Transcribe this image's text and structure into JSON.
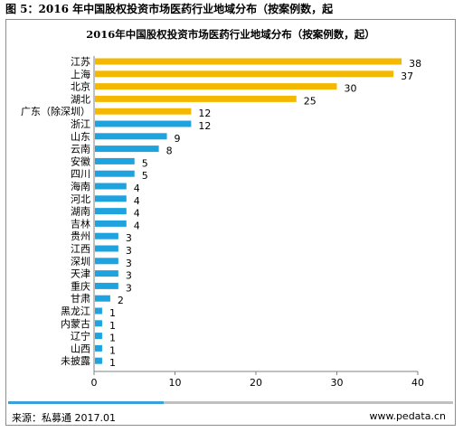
{
  "figure_caption": "图 5：2016 年中国股权投资市场医药行业地域分布（按案例数，起",
  "footer": {
    "source": "来源：私募通 2017.01",
    "website": "www.pedata.cn"
  },
  "colors": {
    "highlight": "#f5b800",
    "normal": "#1fa3df",
    "progress": "#3aa0dc",
    "progress_track": "#c0c0c0"
  },
  "progress_fraction": 0.35,
  "chart_data": {
    "type": "bar",
    "orientation": "horizontal",
    "title": "2016年中国股权投资市场医药行业地域分布（按案例数，起）",
    "xlim": [
      0,
      40
    ],
    "xticks": [
      0,
      10,
      20,
      30,
      40
    ],
    "categories": [
      "江苏",
      "上海",
      "北京",
      "湖北",
      "广东（除深圳）",
      "浙江",
      "山东",
      "云南",
      "安徽",
      "四川",
      "海南",
      "河北",
      "湖南",
      "吉林",
      "贵州",
      "江西",
      "深圳",
      "天津",
      "重庆",
      "甘肃",
      "黑龙江",
      "内蒙古",
      "辽宁",
      "山西",
      "未披露"
    ],
    "values": [
      38,
      37,
      30,
      25,
      12,
      12,
      9,
      8,
      5,
      5,
      4,
      4,
      4,
      4,
      3,
      3,
      3,
      3,
      3,
      2,
      1,
      1,
      1,
      1,
      1
    ],
    "highlighted_categories": [
      "江苏",
      "上海",
      "北京",
      "湖北",
      "广东（除深圳）"
    ],
    "grid": false,
    "legend": "none",
    "data_labels": true
  }
}
